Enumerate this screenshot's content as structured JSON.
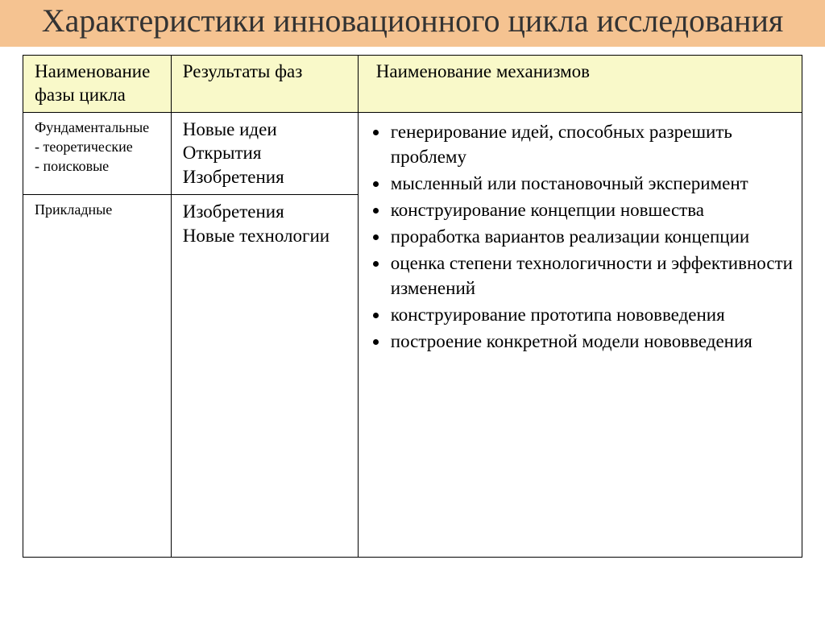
{
  "title": "Характеристики инновационного цикла исследования",
  "colors": {
    "title_bg": "#f5c391",
    "header_bg": "#f9f9c9",
    "border": "#000000",
    "text": "#000000",
    "title_text": "#333333"
  },
  "table": {
    "headers": {
      "phase": "Наименование фазы цикла",
      "results": "Результаты фаз",
      "mechanisms": "Наименование механизмов"
    },
    "rows": [
      {
        "phase": "Фундаментальные\n- теоретические\n- поисковые",
        "results": "Новые идеи\nОткрытия\nИзобретения"
      },
      {
        "phase": "Прикладные",
        "results": "Изобретения\nНовые технологии"
      }
    ],
    "mechanisms": [
      "генерирование идей, способных разрешить проблему",
      "мысленный или постановочный эксперимент",
      "конструирование концепции новшества",
      "проработка вариантов реализации концепции",
      "оценка степени технологичности и эффективности изменений",
      "конструирование прототипа нововведения",
      "построение конкретной модели нововведения"
    ]
  }
}
